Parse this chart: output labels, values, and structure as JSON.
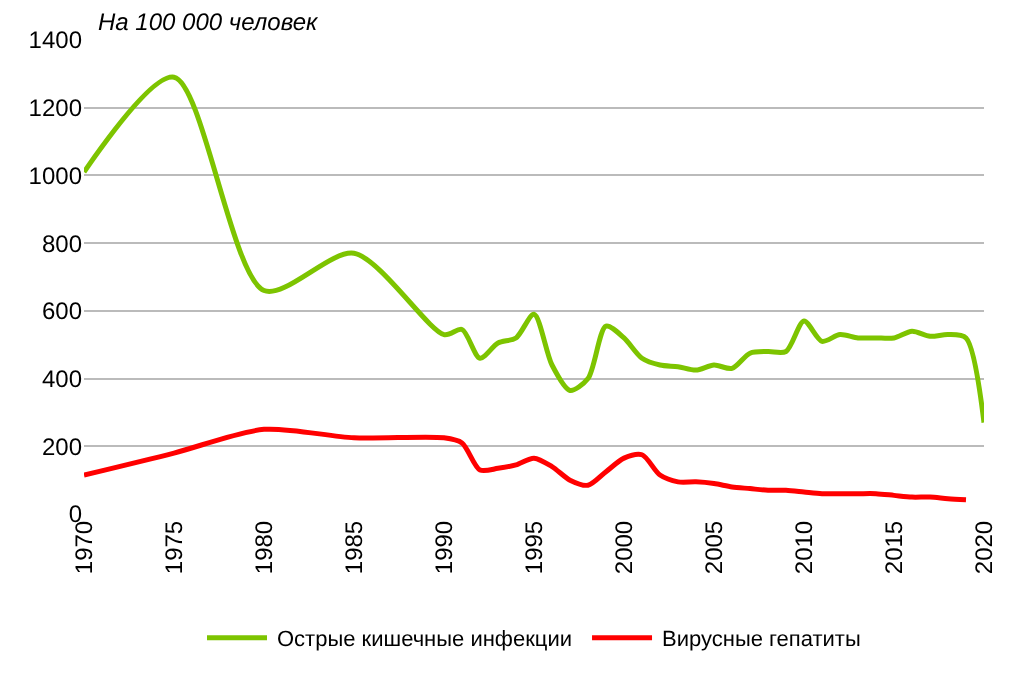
{
  "chart_data": {
    "type": "line",
    "ylabel": "На 100 000 человек",
    "xlim": [
      1970,
      2020
    ],
    "xticks": [
      1970,
      1975,
      1980,
      1985,
      1990,
      1995,
      2000,
      2005,
      2010,
      2015,
      2020
    ],
    "ylim": [
      0,
      1400
    ],
    "yticks": [
      0,
      200,
      400,
      600,
      800,
      1000,
      1200,
      1400
    ],
    "grid": "y",
    "legend": "bottom",
    "line_style": "solid",
    "x": [
      1970,
      1975,
      1980,
      1985,
      1990,
      1991,
      1992,
      1993,
      1994,
      1995,
      1996,
      1997,
      1998,
      1999,
      2000,
      2001,
      2002,
      2003,
      2004,
      2005,
      2006,
      2007,
      2008,
      2009,
      2010,
      2011,
      2012,
      2013,
      2014,
      2015,
      2016,
      2017,
      2018,
      2019,
      2020
    ],
    "series": [
      {
        "name": "Острые кишечные инфекции",
        "color": "#7dc400",
        "values": [
          1010,
          1290,
          660,
          770,
          530,
          545,
          460,
          505,
          520,
          590,
          440,
          365,
          400,
          555,
          520,
          460,
          440,
          435,
          425,
          440,
          430,
          475,
          480,
          480,
          570,
          510,
          530,
          520,
          520,
          520,
          540,
          525,
          530,
          520,
          270
        ]
      },
      {
        "name": "Вирусные гепатиты",
        "color": "#ff0000",
        "values": [
          115,
          180,
          250,
          225,
          225,
          210,
          130,
          135,
          145,
          165,
          140,
          100,
          85,
          125,
          165,
          175,
          115,
          95,
          95,
          90,
          80,
          75,
          70,
          70,
          65,
          60,
          60,
          60,
          60,
          55,
          50,
          50,
          45,
          42,
          null
        ]
      }
    ]
  }
}
